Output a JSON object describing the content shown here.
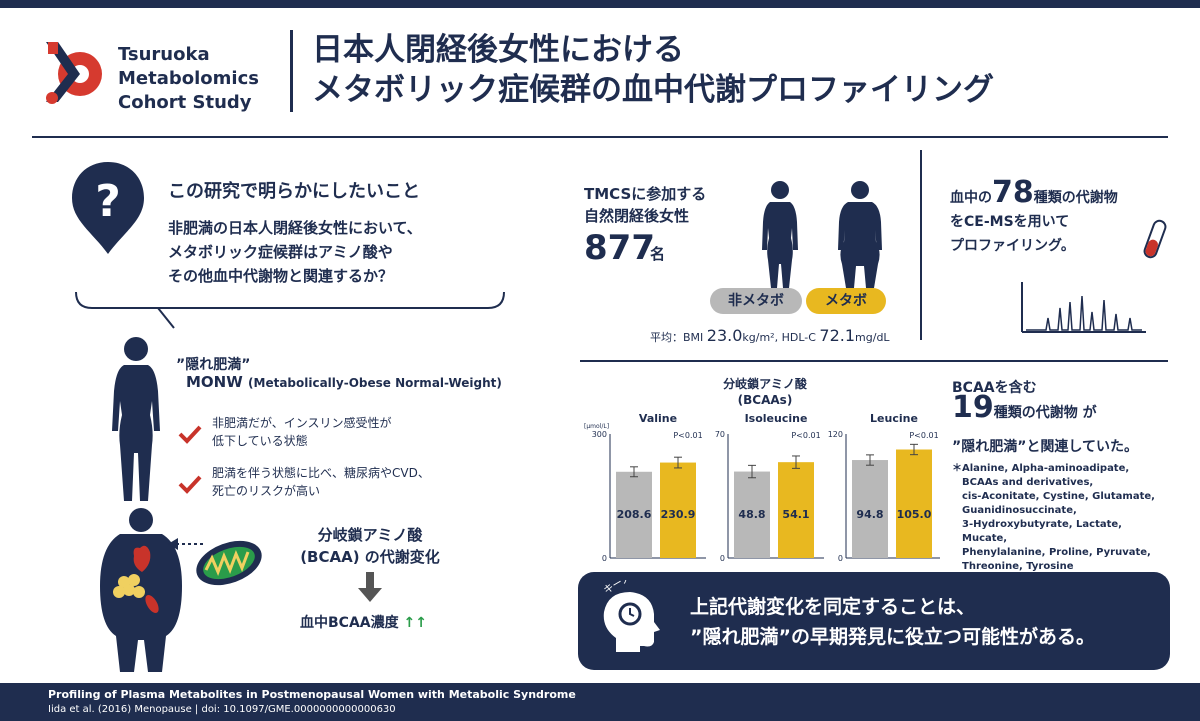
{
  "header": {
    "org_lines": [
      "Tsuruoka",
      "Metabolomics",
      "Cohort Study"
    ],
    "title_lines": [
      "日本人閉経後女性における",
      "メタボリック症候群の血中代謝プロファイリング"
    ]
  },
  "question": {
    "heading": "この研究で明らかにしたいこと",
    "lines": [
      "非肥満の日本人閉経後女性において、",
      "メタボリック症候群はアミノ酸や",
      "その他血中代謝物と関連するか？"
    ]
  },
  "monw": {
    "label_jp": "”隠れ肥満”",
    "label_en": "MONW",
    "label_paren": "(Metabolically-Obese Normal-Weight)",
    "checks": [
      [
        "非肥満だが、インスリン感受性が",
        "低下している状態"
      ],
      [
        "肥満を伴う状態に比べ、糖尿病やCVD、",
        "死亡のリスクが高い"
      ]
    ]
  },
  "bcaa_change": {
    "lines": [
      "分岐鎖アミノ酸",
      "(BCAA) の代謝変化"
    ],
    "result": "血中BCAA濃度",
    "arrows": "↑↑"
  },
  "cohort": {
    "lines": [
      "TMCSに参加する",
      "自然閉経後女性"
    ],
    "count": "877",
    "unit": "名",
    "group_a": "非メタボ",
    "group_b": "メタボ",
    "avg_prefix": "平均：BMI",
    "bmi": "23.0",
    "bmi_unit": "kg/m²",
    "hdl_prefix": ", HDL-C",
    "hdl": "72.1",
    "hdl_unit": "mg/dL"
  },
  "profiling": {
    "pre": "血中の",
    "count": "78",
    "post": "種類の代謝物",
    "line2": "をCE-MSを用いて",
    "line3": "プロファイリング。"
  },
  "chart_data": {
    "type": "bar",
    "title_lines": [
      "分岐鎖アミノ酸",
      "(BCAAs)"
    ],
    "ylabel": "[μmol/L]",
    "colors": {
      "non_mets": "#b8b8b8",
      "mets": "#e8b820"
    },
    "panels": [
      {
        "name": "Valine",
        "ylim": [
          0,
          300
        ],
        "ticks": [
          0,
          300
        ],
        "values": [
          208.6,
          230.9
        ],
        "err": [
          12,
          13
        ],
        "p": "P<0.01"
      },
      {
        "name": "Isoleucine",
        "ylim": [
          0,
          70
        ],
        "ticks": [
          0,
          70
        ],
        "values": [
          48.8,
          54.1
        ],
        "err": [
          3.5,
          3.5
        ],
        "p": "P<0.01"
      },
      {
        "name": "Leucine",
        "ylim": [
          0,
          120
        ],
        "ticks": [
          0,
          120
        ],
        "values": [
          94.8,
          105.0
        ],
        "err": [
          5,
          5
        ],
        "p": "P<0.01"
      }
    ]
  },
  "result": {
    "pre": "BCAAを含む",
    "count": "19",
    "mid": "種類の代謝物",
    "ga": "が",
    "line3": "”隠れ肥満”と関連していた。",
    "star": "＊",
    "list": [
      "Alanine, Alpha-aminoadipate,",
      "BCAAs and derivatives,",
      "cis-Aconitate, Cystine, Glutamate,",
      "Guanidinosuccinate,",
      "3-Hydroxybutyrate, Lactate, Mucate,",
      "Phenylalanine, Proline, Pyruvate,",
      "Threonine, Tyrosine"
    ]
  },
  "key_message": {
    "badge": "キーメッセージ",
    "lines": [
      "上記代謝変化を同定することは、",
      "”隠れ肥満”の早期発見に役立つ可能性がある。"
    ]
  },
  "footer": {
    "line1": "Profiling of Plasma Metabolites in Postmenopausal Women with Metabolic Syndrome",
    "line2": "Iida et al. (2016) Menopause | doi: 10.1097/GME.0000000000000630"
  }
}
